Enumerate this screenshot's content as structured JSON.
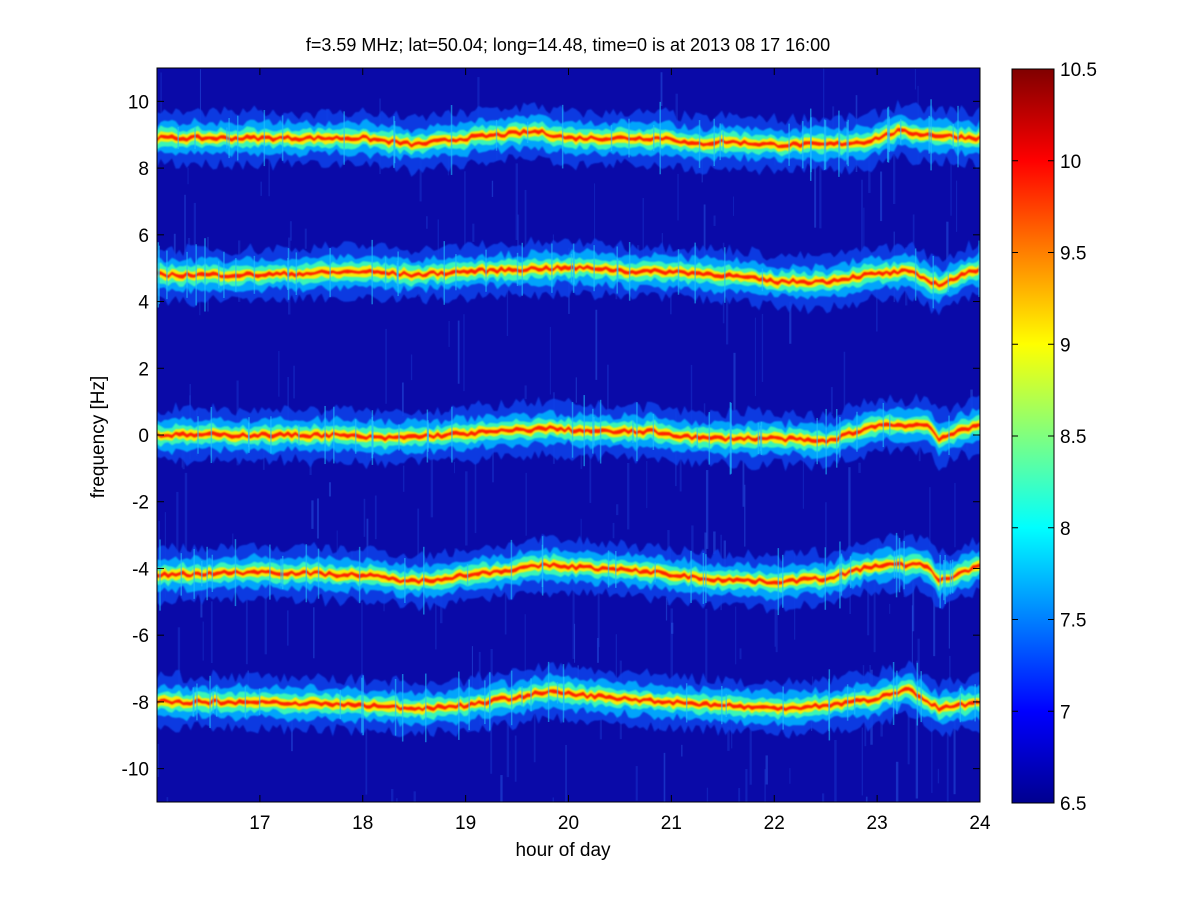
{
  "chart_data": {
    "type": "heatmap",
    "title": "f=3.59 MHz;  lat=50.04; long=14.48, time=0 is at 2013 08 17 16:00",
    "xlabel": "hour of day",
    "ylabel": "frequency [Hz]",
    "xlim": [
      16,
      24
    ],
    "ylim": [
      -11,
      11
    ],
    "xticks": [
      17,
      18,
      19,
      20,
      21,
      22,
      23,
      24
    ],
    "yticks": [
      -10,
      -8,
      -6,
      -4,
      -2,
      0,
      2,
      4,
      6,
      8,
      10
    ],
    "colorbar": {
      "colormap": "jet",
      "clim": [
        6.5,
        10.5
      ],
      "ticks": [
        6.5,
        7,
        7.5,
        8,
        8.5,
        9,
        9.5,
        10,
        10.5
      ]
    },
    "bands": [
      {
        "center_hz": 8.9,
        "points": [
          [
            16.0,
            8.9
          ],
          [
            17.0,
            8.9
          ],
          [
            18.0,
            8.9
          ],
          [
            18.5,
            8.7
          ],
          [
            19.0,
            8.9
          ],
          [
            19.7,
            9.1
          ],
          [
            20.0,
            8.9
          ],
          [
            20.5,
            8.9
          ],
          [
            21.0,
            8.9
          ],
          [
            21.2,
            8.7
          ],
          [
            21.5,
            8.8
          ],
          [
            22.0,
            8.7
          ],
          [
            22.5,
            8.7
          ],
          [
            22.9,
            8.8
          ],
          [
            23.2,
            9.1
          ],
          [
            23.5,
            9.0
          ],
          [
            24.0,
            8.9
          ]
        ]
      },
      {
        "center_hz": 4.9,
        "points": [
          [
            16.0,
            4.8
          ],
          [
            17.0,
            4.8
          ],
          [
            18.0,
            4.9
          ],
          [
            18.5,
            4.8
          ],
          [
            19.0,
            4.9
          ],
          [
            19.8,
            5.0
          ],
          [
            20.3,
            5.0
          ],
          [
            20.6,
            4.9
          ],
          [
            21.0,
            4.9
          ],
          [
            21.5,
            4.8
          ],
          [
            22.0,
            4.6
          ],
          [
            22.5,
            4.6
          ],
          [
            22.9,
            4.8
          ],
          [
            23.3,
            4.9
          ],
          [
            23.6,
            4.5
          ],
          [
            24.0,
            5.0
          ]
        ]
      },
      {
        "center_hz": 0.0,
        "points": [
          [
            16.0,
            0.0
          ],
          [
            17.0,
            0.0
          ],
          [
            17.7,
            0.0
          ],
          [
            18.2,
            -0.1
          ],
          [
            18.8,
            0.0
          ],
          [
            19.3,
            0.1
          ],
          [
            19.8,
            0.2
          ],
          [
            20.3,
            0.1
          ],
          [
            20.8,
            0.1
          ],
          [
            21.3,
            -0.1
          ],
          [
            22.0,
            -0.1
          ],
          [
            22.5,
            -0.2
          ],
          [
            23.0,
            0.3
          ],
          [
            23.5,
            0.3
          ],
          [
            23.6,
            -0.1
          ],
          [
            24.0,
            0.3
          ]
        ]
      },
      {
        "center_hz": -4.2,
        "points": [
          [
            16.0,
            -4.2
          ],
          [
            17.0,
            -4.1
          ],
          [
            18.0,
            -4.2
          ],
          [
            18.5,
            -4.4
          ],
          [
            19.0,
            -4.2
          ],
          [
            19.8,
            -3.9
          ],
          [
            20.3,
            -4.0
          ],
          [
            20.8,
            -4.1
          ],
          [
            21.3,
            -4.3
          ],
          [
            22.0,
            -4.4
          ],
          [
            22.5,
            -4.3
          ],
          [
            23.0,
            -3.9
          ],
          [
            23.5,
            -3.9
          ],
          [
            23.6,
            -4.4
          ],
          [
            24.0,
            -3.9
          ]
        ]
      },
      {
        "center_hz": -8.0,
        "points": [
          [
            16.0,
            -8.0
          ],
          [
            17.0,
            -8.0
          ],
          [
            18.0,
            -8.1
          ],
          [
            18.5,
            -8.2
          ],
          [
            19.0,
            -8.1
          ],
          [
            19.8,
            -7.7
          ],
          [
            20.5,
            -7.9
          ],
          [
            21.0,
            -8.0
          ],
          [
            21.5,
            -8.1
          ],
          [
            22.0,
            -8.2
          ],
          [
            22.5,
            -8.1
          ],
          [
            23.0,
            -7.9
          ],
          [
            23.3,
            -7.6
          ],
          [
            23.6,
            -8.2
          ],
          [
            24.0,
            -8.0
          ]
        ]
      }
    ]
  }
}
